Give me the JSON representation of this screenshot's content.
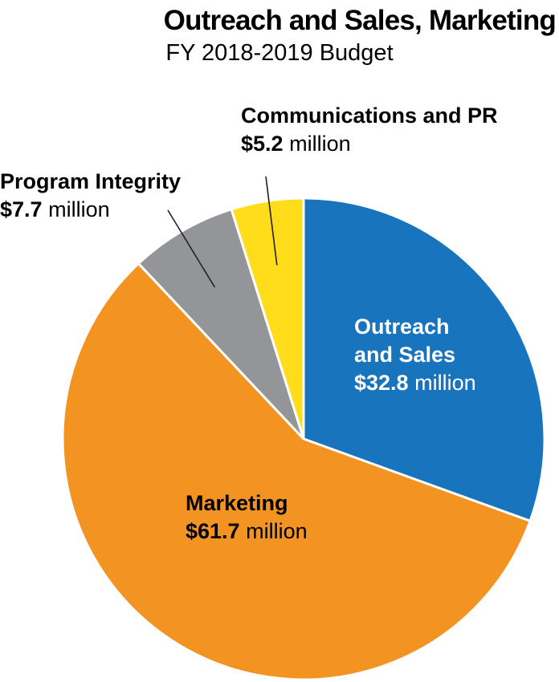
{
  "chart_data": {
    "type": "pie",
    "title": "Outreach and Sales, Marketing",
    "subtitle": "FY 2018-2019 Budget",
    "unit": "million",
    "slices": [
      {
        "label": "Outreach and Sales",
        "value": 32.8,
        "amount": "$32.8",
        "color": "#1874BD"
      },
      {
        "label": "Marketing",
        "value": 61.7,
        "amount": "$61.7",
        "color": "#F39322"
      },
      {
        "label": "Program Integrity",
        "value": 7.7,
        "amount": "$7.7",
        "color": "#939598"
      },
      {
        "label": "Communications and PR",
        "value": 5.2,
        "amount": "$5.2",
        "color": "#FFDD1A"
      }
    ],
    "label_lines": {
      "outreach": [
        "Outreach",
        "and Sales"
      ]
    }
  }
}
